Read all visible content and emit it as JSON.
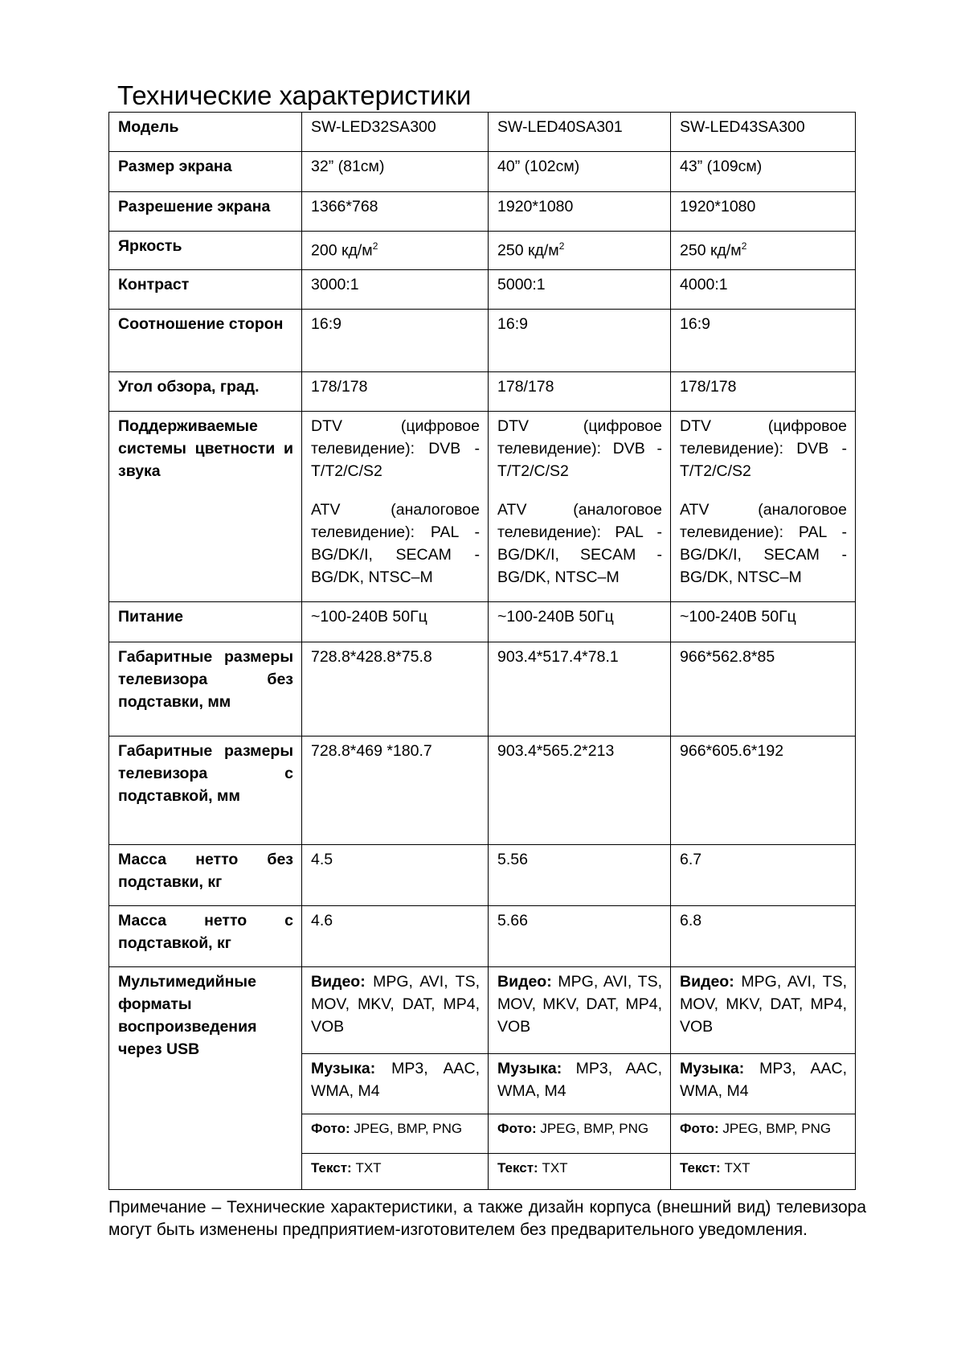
{
  "title": "Технические характеристики",
  "models": [
    "SW-LED32SA300",
    "SW-LED40SA301",
    "SW-LED43SA300"
  ],
  "rows": [
    {
      "label": "Модель",
      "values": [
        "SW-LED32SA300",
        "SW-LED40SA301",
        "SW-LED43SA300"
      ]
    },
    {
      "label": "Размер экрана",
      "values": [
        "32” (81см)",
        "40” (102см)",
        "43” (109см)"
      ]
    },
    {
      "label": "Разрешение экрана",
      "values": [
        "1366*768",
        "1920*1080",
        "1920*1080"
      ]
    },
    {
      "label": "Яркость",
      "values": [
        "200 кд/м",
        "250 кд/м",
        "250 кд/м"
      ],
      "sup": "2"
    },
    {
      "label": "Контраст",
      "values": [
        "3000:1",
        "5000:1",
        "4000:1"
      ]
    },
    {
      "label": "Соотношение сторон",
      "values": [
        "16:9",
        "16:9",
        "16:9"
      ]
    },
    {
      "label": "Угол обзора, град.",
      "values": [
        "178/178",
        "178/178",
        "178/178"
      ]
    },
    {
      "label": "Поддерживаемые системы цветности и звука",
      "dtv": "DTV (цифровое телевидение): DVB - T/T2/C/S2",
      "atv": "ATV (аналоговое телевидение): PAL - BG/DK/I, SECAM - BG/DK, NTSC–M"
    },
    {
      "label": "Питание",
      "values": [
        "~100-240В 50Гц",
        "~100-240В 50Гц",
        "~100-240В 50Гц"
      ]
    },
    {
      "label": "Габаритные размеры телевизора без подставки, мм",
      "values": [
        "728.8*428.8*75.8",
        "903.4*517.4*78.1",
        "966*562.8*85"
      ]
    },
    {
      "label": "Габаритные размеры телевизора с подставкой, мм",
      "values": [
        "728.8*469 *180.7",
        "903.4*565.2*213",
        "966*605.6*192"
      ]
    },
    {
      "label": "Масса нетто без подставки, кг",
      "values": [
        "4.5",
        "5.56",
        "6.7"
      ]
    },
    {
      "label": "Масса нетто с подставкой, кг",
      "values": [
        "4.6",
        "5.66",
        "6.8"
      ]
    }
  ],
  "multimedia": {
    "label": "Мультимедийные форматы воспроизведения через USB",
    "video_label": "Видео:",
    "video": " MPG, AVI, TS, MOV, MKV, DAT, MP4, VOB",
    "music_label": "Музыка:",
    "music": " MP3, AAC, WMA, M4",
    "photo_label": "Фото:",
    "photo": " JPEG, BMP, PNG",
    "text_label": "Текст:",
    "text": " TXT"
  },
  "note": "Примечание – Технические характеристики, а также дизайн корпуса (внешний вид) телевизора могут быть изменены предприятием-изготовителем без предварительного уведомления."
}
